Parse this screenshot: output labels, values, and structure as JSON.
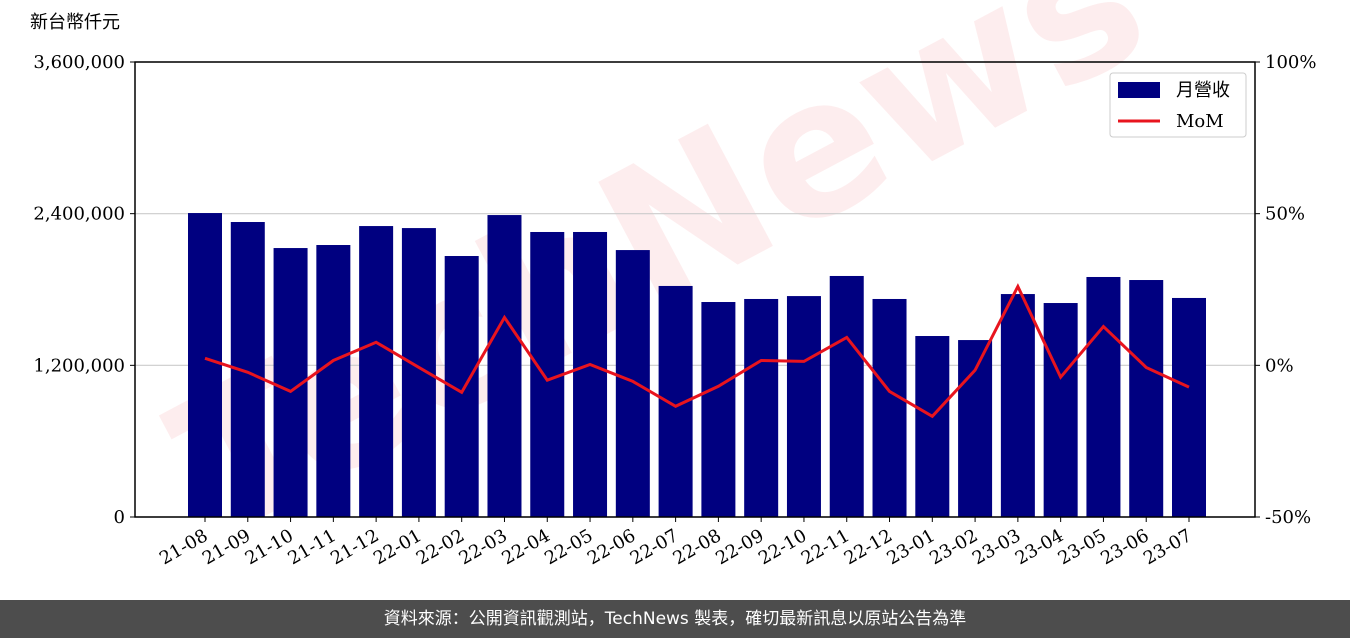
{
  "chart_data": {
    "type": "bar-line",
    "ylabel": "新台幣仟元",
    "watermark": "TechNews",
    "categories": [
      "21-08",
      "21-09",
      "21-10",
      "21-11",
      "21-12",
      "22-01",
      "22-02",
      "22-03",
      "22-04",
      "22-05",
      "22-06",
      "22-07",
      "22-08",
      "22-09",
      "22-10",
      "22-11",
      "22-12",
      "23-01",
      "23-02",
      "23-03",
      "23-04",
      "23-05",
      "23-06",
      "23-07"
    ],
    "series": [
      {
        "name": "月營收",
        "type": "bar",
        "color": "#000080",
        "values": [
          2405000,
          2334000,
          2128000,
          2152000,
          2302000,
          2286000,
          2065000,
          2389000,
          2255000,
          2255000,
          2112000,
          1828000,
          1701000,
          1725000,
          1748000,
          1907000,
          1725000,
          1432000,
          1400000,
          1764000,
          1693000,
          1899000,
          1875000,
          1733000
        ]
      },
      {
        "name": "MoM",
        "type": "line",
        "axis": "y2",
        "color": "#e8141e",
        "values": [
          2.3,
          -2.3,
          -8.6,
          1.6,
          7.6,
          -0.7,
          -8.9,
          15.8,
          -4.9,
          0.3,
          -5.3,
          -13.5,
          -6.9,
          1.6,
          1.3,
          9.2,
          -8.6,
          -16.8,
          -1.6,
          26,
          -3.9,
          12.8,
          -0.7,
          -7.2
        ]
      }
    ],
    "ylim": [
      0,
      3600000
    ],
    "yticks": [
      0,
      {
        "value": 1200000,
        "label": "1,200,000"
      },
      {
        "value": 2400000,
        "label": "2,400,000"
      },
      {
        "value": 3600000,
        "label": "3,600,000"
      }
    ],
    "y2lim": [
      -50,
      100
    ],
    "y2ticks": [
      {
        "value": -50,
        "label": "-50%"
      },
      {
        "value": 0,
        "label": "0%"
      },
      {
        "value": 50,
        "label": "50%"
      },
      {
        "value": 100,
        "label": "100%"
      }
    ],
    "grid": true,
    "legend": "upper right",
    "footer": "資料來源：公開資訊觀測站，TechNews 製表，確切最新訊息以原站公告為準"
  }
}
